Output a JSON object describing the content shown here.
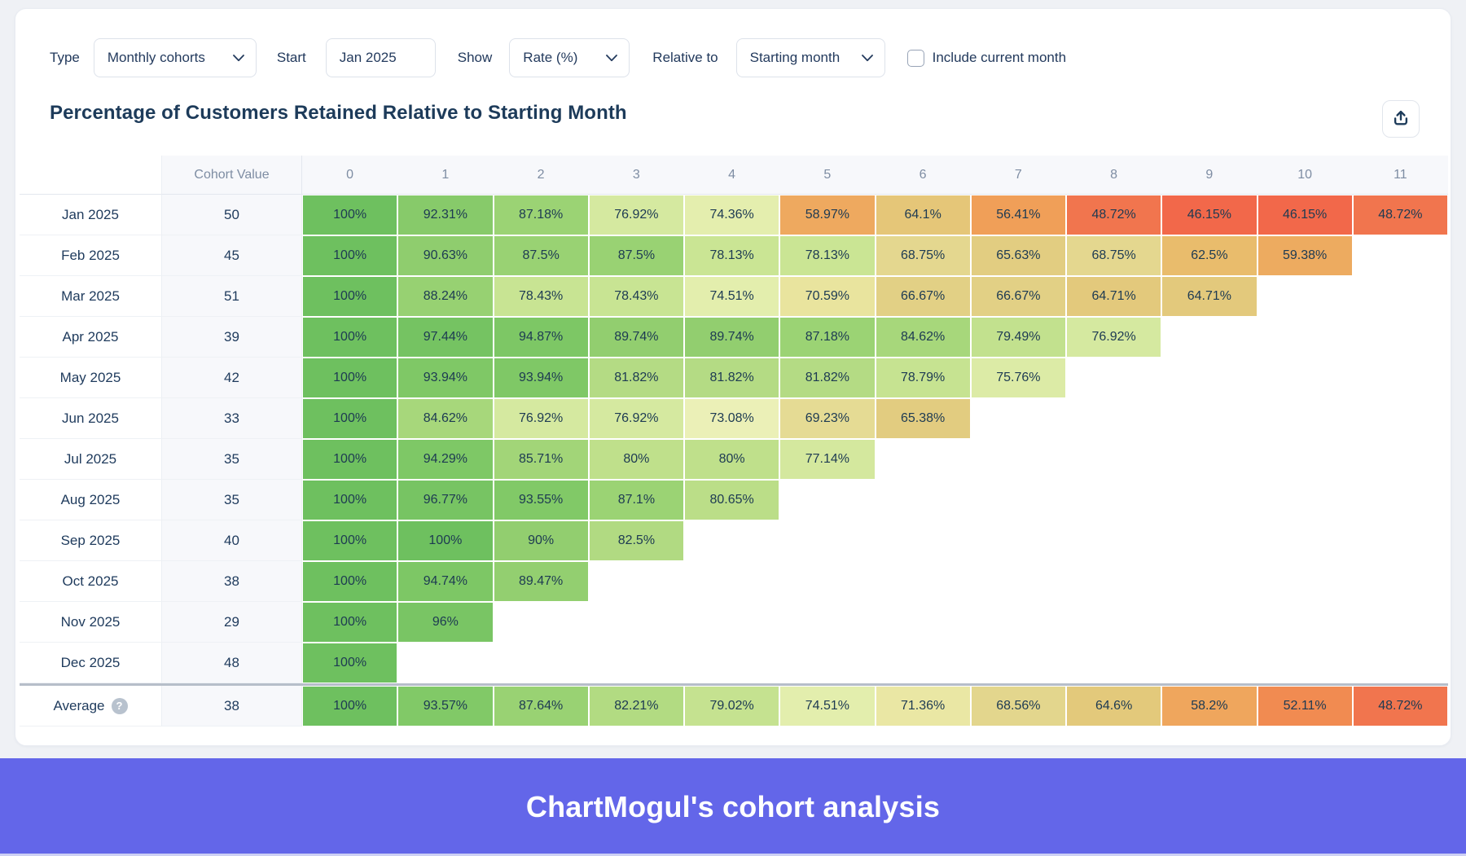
{
  "controls": {
    "type_label": "Type",
    "type_value": "Monthly cohorts",
    "start_label": "Start",
    "start_value": "Jan 2025",
    "show_label": "Show",
    "show_value": "Rate (%)",
    "relative_label": "Relative to",
    "relative_value": "Starting month",
    "include_label": "Include current month",
    "include_checked": false
  },
  "title": "Percentage of Customers Retained Relative to Starting Month",
  "table": {
    "cohort_value_header": "Cohort Value",
    "month_headers": [
      "0",
      "1",
      "2",
      "3",
      "4",
      "5",
      "6",
      "7",
      "8",
      "9",
      "10",
      "11"
    ],
    "rows": [
      {
        "label": "Jan 2025",
        "cohort_value": 50,
        "values": [
          100,
          92.31,
          87.18,
          76.92,
          74.36,
          58.97,
          64.1,
          56.41,
          48.72,
          46.15,
          46.15,
          48.72
        ]
      },
      {
        "label": "Feb 2025",
        "cohort_value": 45,
        "values": [
          100,
          90.63,
          87.5,
          87.5,
          78.13,
          78.13,
          68.75,
          65.63,
          68.75,
          62.5,
          59.38
        ]
      },
      {
        "label": "Mar 2025",
        "cohort_value": 51,
        "values": [
          100,
          88.24,
          78.43,
          78.43,
          74.51,
          70.59,
          66.67,
          66.67,
          64.71,
          64.71
        ]
      },
      {
        "label": "Apr 2025",
        "cohort_value": 39,
        "values": [
          100,
          97.44,
          94.87,
          89.74,
          89.74,
          87.18,
          84.62,
          79.49,
          76.92
        ]
      },
      {
        "label": "May 2025",
        "cohort_value": 42,
        "values": [
          100,
          93.94,
          93.94,
          81.82,
          81.82,
          81.82,
          78.79,
          75.76
        ]
      },
      {
        "label": "Jun 2025",
        "cohort_value": 33,
        "values": [
          100,
          84.62,
          76.92,
          76.92,
          73.08,
          69.23,
          65.38
        ]
      },
      {
        "label": "Jul 2025",
        "cohort_value": 35,
        "values": [
          100,
          94.29,
          85.71,
          80,
          80,
          77.14
        ]
      },
      {
        "label": "Aug 2025",
        "cohort_value": 35,
        "values": [
          100,
          96.77,
          93.55,
          87.1,
          80.65
        ]
      },
      {
        "label": "Sep 2025",
        "cohort_value": 40,
        "values": [
          100,
          100,
          90,
          82.5
        ]
      },
      {
        "label": "Oct 2025",
        "cohort_value": 38,
        "values": [
          100,
          94.74,
          89.47
        ]
      },
      {
        "label": "Nov 2025",
        "cohort_value": 29,
        "values": [
          100,
          96
        ]
      },
      {
        "label": "Dec 2025",
        "cohort_value": 48,
        "values": [
          100
        ]
      }
    ],
    "average_row": {
      "label": "Average",
      "cohort_value": 38,
      "values": [
        100,
        93.57,
        87.64,
        82.21,
        79.02,
        74.51,
        71.36,
        68.56,
        64.6,
        58.2,
        52.11,
        48.72
      ]
    }
  },
  "banner": {
    "text": "ChartMogul's cohort analysis",
    "bg": "#6366e9",
    "fg": "#ffffff"
  },
  "colors": {
    "page_bg": "#eff1f5",
    "card_bg": "#ffffff",
    "text_dark": "#1e3a5c",
    "header_text": "#7e8da3"
  },
  "color_scale": {
    "stops": [
      [
        46,
        "#f2674a"
      ],
      [
        49,
        "#f1764e"
      ],
      [
        52,
        "#f18a51"
      ],
      [
        56.5,
        "#f09f58"
      ],
      [
        59,
        "#eea95f"
      ],
      [
        62.5,
        "#e9bc6c"
      ],
      [
        65,
        "#e2cb7e"
      ],
      [
        68.5,
        "#e3d58c"
      ],
      [
        70,
        "#e8e29c"
      ],
      [
        71,
        "#eae5a0"
      ],
      [
        73,
        "#ebf0b8"
      ],
      [
        75,
        "#e0edaa"
      ],
      [
        77,
        "#d5e9a0"
      ],
      [
        78,
        "#cbe595"
      ],
      [
        80,
        "#bfe08b"
      ],
      [
        82,
        "#b3db83"
      ],
      [
        85,
        "#a5d67a"
      ],
      [
        87.5,
        "#99d273"
      ],
      [
        90.5,
        "#90cd6e"
      ],
      [
        94,
        "#7fc866"
      ],
      [
        100,
        "#6ec05f"
      ]
    ]
  }
}
